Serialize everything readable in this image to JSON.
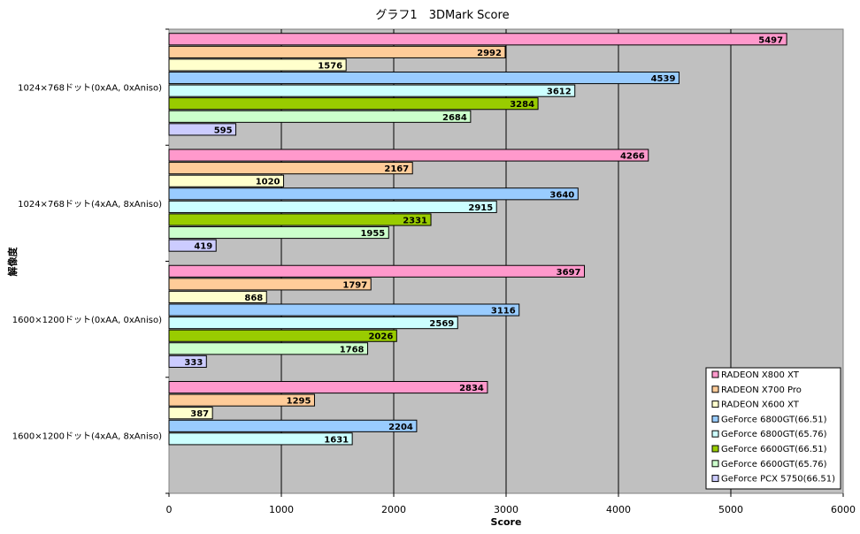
{
  "chart_data": {
    "type": "bar",
    "orientation": "horizontal",
    "title": "グラフ1　3DMark Score",
    "xlabel": "Score",
    "ylabel": "解像度",
    "xlim": [
      0,
      6000
    ],
    "x_ticks": [
      0,
      1000,
      2000,
      3000,
      4000,
      5000,
      6000
    ],
    "grid": true,
    "legend_position": "bottom-right",
    "categories": [
      "1024×768ドット(0xAA, 0xAniso)",
      "1024×768ドット(4xAA, 8xAniso)",
      "1600×1200ドット(0xAA, 0xAniso)",
      "1600×1200ドット(4xAA, 8xAniso)"
    ],
    "series": [
      {
        "name": "RADEON X800 XT",
        "color": "#ff99cc",
        "values": [
          5497,
          4266,
          3697,
          2834
        ]
      },
      {
        "name": "RADEON X700 Pro",
        "color": "#ffcc99",
        "values": [
          2992,
          2167,
          1797,
          1295
        ]
      },
      {
        "name": "RADEON X600 XT",
        "color": "#ffffcc",
        "values": [
          1576,
          1020,
          868,
          387
        ]
      },
      {
        "name": "GeForce 6800GT(66.51)",
        "color": "#99ccff",
        "values": [
          4539,
          3640,
          3116,
          2204
        ]
      },
      {
        "name": "GeForce 6800GT(65.76)",
        "color": "#ccffff",
        "values": [
          3612,
          2915,
          2569,
          1631
        ]
      },
      {
        "name": "GeForce 6600GT(66.51)",
        "color": "#99cc00",
        "values": [
          3284,
          2331,
          2026,
          null
        ]
      },
      {
        "name": "GeForce 6600GT(65.76)",
        "color": "#ccffcc",
        "values": [
          2684,
          1955,
          1768,
          null
        ]
      },
      {
        "name": "GeForce PCX 5750(66.51)",
        "color": "#ccccff",
        "values": [
          595,
          419,
          333,
          null
        ]
      }
    ]
  }
}
